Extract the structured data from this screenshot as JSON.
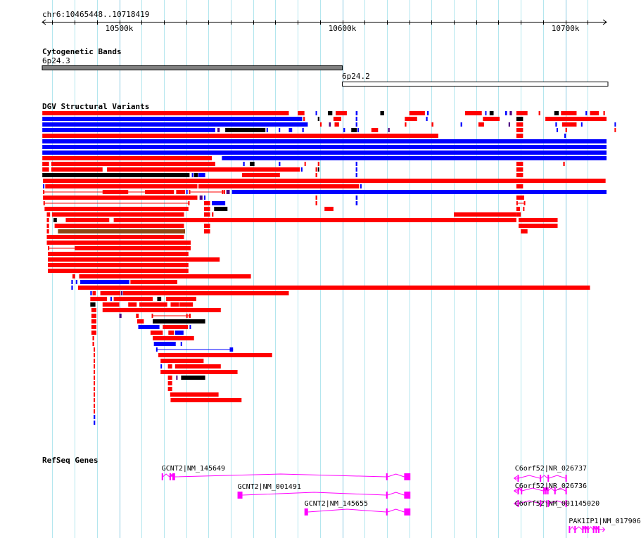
{
  "ruler": {
    "region": "chr6:10465448..10718419",
    "start": 10465448,
    "end": 10718419,
    "ticks": [
      {
        "pos": 10500000,
        "label": "10500k"
      },
      {
        "pos": 10600000,
        "label": "10600k"
      },
      {
        "pos": 10700000,
        "label": "10700k"
      }
    ]
  },
  "tracks": {
    "cytoband_title": "Cytogenetic Bands",
    "variants_title": "DGV Structural Variants",
    "genes_title": "RefSeq Genes"
  },
  "cytobands": [
    {
      "name": "6p24.3",
      "start": 10465448,
      "end": 10600000,
      "stain": "gpos"
    },
    {
      "name": "6p24.2",
      "start": 10600000,
      "end": 10718419,
      "stain": "gneg"
    }
  ],
  "colors": {
    "gain": "#ff0000",
    "loss": "#0000ff",
    "complex": "#000000",
    "inversion": "#4b0082",
    "other": "#8b4513",
    "gene": "#ff00ff",
    "grid": "#b3e6ee",
    "grid_major": "#87c8e0",
    "band_gpos": "#808080"
  },
  "variants": [
    [
      [
        "g",
        10465500,
        10576000
      ],
      [
        "g",
        10580000,
        10583000
      ],
      [
        "l",
        10588000,
        10588500
      ],
      [
        "c",
        10593500,
        10595500
      ],
      [
        "g",
        10597000,
        10602000
      ],
      [
        "l",
        10606000,
        10606800
      ],
      [
        "c",
        10617000,
        10618700
      ],
      [
        "g",
        10630000,
        10637000
      ],
      [
        "l",
        10638000,
        10638700
      ],
      [
        "g",
        10655000,
        10662500
      ],
      [
        "l",
        10664000,
        10664600
      ],
      [
        "c",
        10666000,
        10667800
      ],
      [
        "l",
        10673000,
        10673800
      ],
      [
        "i",
        10675000,
        10676000
      ],
      [
        "g",
        10678000,
        10683000
      ],
      [
        "g",
        10688000,
        10688700
      ],
      [
        "c",
        10695000,
        10697000
      ],
      [
        "g",
        10698000,
        10705000
      ],
      [
        "l",
        10709000,
        10709700
      ],
      [
        "g",
        10711000,
        10715000
      ],
      [
        "g",
        10717000,
        10717700
      ]
    ],
    [
      [
        "l",
        10465500,
        10582000
      ],
      [
        "g",
        10582500,
        10583200
      ],
      [
        "c",
        10589000,
        10589700
      ],
      [
        "g",
        10596000,
        10599500
      ],
      [
        "l",
        10606000,
        10606700
      ],
      [
        "g",
        10628000,
        10633500
      ],
      [
        "l",
        10637500,
        10638200
      ],
      [
        "g",
        10663000,
        10670500
      ],
      [
        "c",
        10678000,
        10681000
      ],
      [
        "g",
        10691000,
        10718419
      ]
    ],
    [
      [
        "l",
        10465500,
        10584500
      ],
      [
        "g",
        10590000,
        10590700
      ],
      [
        "i",
        10594000,
        10594800
      ],
      [
        "g",
        10596500,
        10598500
      ],
      [
        "l",
        10606000,
        10606700
      ],
      [
        "g",
        10628000,
        10628700
      ],
      [
        "g",
        10640000,
        10640800
      ],
      [
        "l",
        10653000,
        10653700
      ],
      [
        "g",
        10661000,
        10663500
      ],
      [
        "i",
        10674500,
        10675200
      ],
      [
        "g",
        10678000,
        10681000
      ],
      [
        "l",
        10695500,
        10696200
      ],
      [
        "g",
        10698500,
        10705000
      ],
      [
        "l",
        10707000,
        10707600
      ],
      [
        "l",
        10722000,
        10722600
      ]
    ],
    [
      [
        "l",
        10465500,
        10543000
      ],
      [
        "i",
        10544000,
        10545000
      ],
      [
        "c",
        10547500,
        10565500
      ],
      [
        "l",
        10566000,
        10566600
      ],
      [
        "l",
        10571500,
        10572100
      ],
      [
        "l",
        10576000,
        10577500
      ],
      [
        "l",
        10582000,
        10582700
      ],
      [
        "l",
        10600500,
        10601200
      ],
      [
        "c",
        10604000,
        10606500
      ],
      [
        "l",
        10606800,
        10607400
      ],
      [
        "g",
        10613000,
        10616000
      ],
      [
        "i",
        10620500,
        10621200
      ],
      [
        "g",
        10678000,
        10681000
      ],
      [
        "l",
        10696000,
        10696600
      ],
      [
        "g",
        10700000,
        10700700
      ],
      [
        "g",
        10722000,
        10722600
      ]
    ],
    [
      [
        "g",
        10465500,
        10643000
      ],
      [
        "g",
        10678000,
        10681000
      ],
      [
        "l",
        10699500,
        10700200
      ]
    ],
    [
      [
        "l",
        10465500,
        10718419
      ]
    ],
    [
      [
        "l",
        10465500,
        10718419
      ]
    ],
    [
      [
        "l",
        10465500,
        10718419
      ]
    ],
    [
      [
        "g",
        10465500,
        10541500
      ],
      [
        "l",
        10546000,
        10718419
      ]
    ],
    [
      [
        "g",
        10465500,
        10468500
      ],
      [
        "g",
        10469500,
        10543000
      ],
      [
        "l",
        10555500,
        10556200
      ],
      [
        "c",
        10558500,
        10560600
      ],
      [
        "l",
        10571500,
        10572200
      ],
      [
        "g",
        10583000,
        10583600
      ],
      [
        "g",
        10589000,
        10589700
      ],
      [
        "l",
        10606000,
        10606700
      ],
      [
        "g",
        10678000,
        10681000
      ],
      [
        "g",
        10699000,
        10699700
      ]
    ],
    [
      [
        "g",
        10465500,
        10468500
      ],
      [
        "g",
        10469500,
        10492500
      ],
      [
        "g",
        10494500,
        10581000
      ],
      [
        "l",
        10581500,
        10582100
      ],
      [
        "g",
        10588000,
        10588700
      ],
      [
        "c",
        10589000,
        10589600
      ],
      [
        "l",
        10606000,
        10606700
      ],
      [
        "g",
        10678000,
        10681000
      ]
    ],
    [
      [
        "c",
        10465500,
        10531500
      ],
      [
        "l",
        10532500,
        10533200
      ],
      [
        "c",
        10533500,
        10535300
      ],
      [
        "l",
        10535500,
        10538500
      ],
      [
        "g",
        10555000,
        10572000
      ],
      [
        "g",
        10588000,
        10588700
      ],
      [
        "l",
        10606000,
        10606700
      ],
      [
        "g",
        10678000,
        10681000
      ]
    ],
    [
      [
        "g",
        10465800,
        10718000
      ]
    ],
    [
      [
        "l",
        10465800,
        10466400
      ],
      [
        "g",
        10466800,
        10535000
      ],
      [
        "g",
        10535500,
        10607500
      ],
      [
        "l",
        10608000,
        10608600
      ],
      [
        "g",
        10678000,
        10681000
      ]
    ],
    [
      [
        "gi",
        10465800,
        10466300,
        10492500,
        10504000,
        10511500,
        10524500
      ],
      [
        "g",
        10525500,
        10529500
      ],
      [
        "l",
        10530000,
        10530600
      ],
      [
        "gi",
        10531200,
        10531700,
        10546000,
        10532500,
        10546800,
        10547400
      ],
      [
        "i",
        10548000,
        10549500
      ],
      [
        "l",
        10550500,
        10718419
      ]
    ],
    [
      [
        "g",
        10465800,
        10535000
      ],
      [
        "i",
        10536000,
        10537300
      ],
      [
        "l",
        10538000,
        10538600
      ],
      [
        "g",
        10588000,
        10588700
      ],
      [
        "l",
        10606000,
        10606800
      ],
      [
        "g",
        10678000,
        10681500
      ]
    ],
    [
      [
        "gs",
        10466000,
        10531500
      ],
      [
        "g",
        10538000,
        10540700
      ],
      [
        "l",
        10541500,
        10547500
      ],
      [
        "g",
        10588000,
        10588700
      ],
      [
        "l",
        10606000,
        10606800
      ],
      [
        "gs",
        10678000,
        10682000
      ]
    ],
    [
      [
        "g",
        10466500,
        10531000
      ],
      [
        "g",
        10538000,
        10540700
      ],
      [
        "c",
        10542500,
        10548500
      ],
      [
        "g",
        10592000,
        10596000
      ],
      [
        "g",
        10678000,
        10679600
      ],
      [
        "g",
        10681000,
        10681600
      ]
    ],
    [
      [
        "g",
        10467500,
        10469000
      ],
      [
        "g",
        10469800,
        10529000
      ],
      [
        "g",
        10538000,
        10540700
      ],
      [
        "g",
        10541500,
        10542200
      ],
      [
        "g",
        10650000,
        10678000
      ],
      [
        "g",
        10678000,
        10680000
      ]
    ],
    [
      [
        "g",
        10467500,
        10468500
      ],
      [
        "c",
        10470500,
        10472000
      ],
      [
        "g",
        10476000,
        10495500
      ],
      [
        "g",
        10497500,
        10678000
      ],
      [
        "g",
        10679000,
        10696500
      ]
    ],
    [
      [
        "g",
        10467500,
        10468500
      ],
      [
        "g",
        10471000,
        10529000
      ],
      [
        "g",
        10538000,
        10540700
      ],
      [
        "g",
        10679000,
        10696500
      ]
    ],
    [
      [
        "g",
        10467500,
        10468500
      ],
      [
        "o",
        10472500,
        10529500
      ],
      [
        "g",
        10538000,
        10540700
      ],
      [
        "g",
        10680000,
        10683000
      ]
    ],
    [
      [
        "g",
        10467500,
        10529000
      ]
    ],
    [
      [
        "g",
        10467500,
        10532000
      ]
    ],
    [
      [
        "gs",
        10468000,
        10532000,
        10480000,
        10531500
      ]
    ],
    [
      [
        "g",
        10468000,
        10531000
      ]
    ],
    [
      [
        "g",
        10468000,
        10545000
      ]
    ],
    [
      [
        "g",
        10468000,
        10531000
      ]
    ],
    [
      [
        "g",
        10468000,
        10531000
      ]
    ],
    [
      [
        "g",
        10479000,
        10480200
      ],
      [
        "g",
        10482000,
        10559000
      ]
    ],
    [
      [
        "l",
        10478500,
        10479200
      ],
      [
        "l",
        10480500,
        10481200
      ],
      [
        "l",
        10482500,
        10504500
      ],
      [
        "g",
        10505000,
        10526000
      ]
    ],
    [
      [
        "l",
        10478500,
        10479200
      ],
      [
        "g",
        10481500,
        10711000
      ]
    ],
    [
      [
        "l",
        10487000,
        10487700
      ],
      [
        "g",
        10488000,
        10489500
      ],
      [
        "g",
        10491500,
        10500500
      ],
      [
        "i",
        10500700,
        10501500
      ],
      [
        "g",
        10501700,
        10576000
      ]
    ],
    [
      [
        "g",
        10487000,
        10494500
      ],
      [
        "l",
        10496000,
        10496700
      ],
      [
        "g",
        10497500,
        10515000
      ],
      [
        "c",
        10517000,
        10518800
      ],
      [
        "g",
        10521000,
        10534500
      ]
    ],
    [
      [
        "c",
        10487000,
        10489300
      ],
      [
        "g",
        10492500,
        10500000
      ],
      [
        "g",
        10504000,
        10507800
      ],
      [
        "g",
        10509000,
        10521500
      ],
      [
        "g",
        10523000,
        10526800
      ],
      [
        "g",
        10527000,
        10533000
      ]
    ],
    [
      [
        "g",
        10487500,
        10489700
      ],
      [
        "g",
        10492500,
        10545500
      ]
    ],
    [
      [
        "g",
        10487500,
        10489700
      ],
      [
        "i",
        10500000,
        10501000
      ],
      [
        "g",
        10507500,
        10508700
      ],
      [
        "gi",
        10514500,
        10515000,
        10530000,
        10516500,
        10531200,
        10532000
      ]
    ],
    [
      [
        "g",
        10487500,
        10489700
      ],
      [
        "g",
        10508000,
        10511000
      ],
      [
        "c",
        10515000,
        10538500
      ]
    ],
    [
      [
        "g",
        10487500,
        10489700
      ],
      [
        "l",
        10508500,
        10518000
      ],
      [
        "g",
        10519500,
        10530800
      ],
      [
        "l",
        10531500,
        10532100
      ]
    ],
    [
      [
        "g",
        10487500,
        10489700
      ],
      [
        "g",
        10514000,
        10519500
      ],
      [
        "g",
        10522000,
        10524500
      ],
      [
        "l",
        10525000,
        10528800
      ]
    ],
    [
      [
        "g",
        10488000,
        10488700
      ],
      [
        "g",
        10515000,
        10533500
      ]
    ],
    [
      [
        "g",
        10488000,
        10488700
      ],
      [
        "l",
        10515500,
        10525300
      ],
      [
        "l",
        10527500,
        10528100
      ]
    ],
    [
      [
        "g",
        10488500,
        10489000
      ],
      [
        "li",
        10516500,
        10517000,
        10549500,
        10551000
      ]
    ],
    [
      [
        "g",
        10488500,
        10489000
      ],
      [
        "g",
        10517500,
        10568500
      ]
    ],
    [
      [
        "g",
        10488500,
        10489000
      ],
      [
        "g",
        10518500,
        10537800
      ]
    ],
    [
      [
        "g",
        10488500,
        10489000
      ],
      [
        "l",
        10518500,
        10519100
      ],
      [
        "g",
        10521800,
        10523700
      ],
      [
        "g",
        10525000,
        10545500
      ]
    ],
    [
      [
        "g",
        10488500,
        10489000
      ],
      [
        "g",
        10518500,
        10553000
      ]
    ],
    [
      [
        "g",
        10488500,
        10489000
      ],
      [
        "g",
        10521800,
        10523700
      ],
      [
        "i",
        10525500,
        10526100
      ],
      [
        "c",
        10527700,
        10538500
      ]
    ],
    [
      [
        "g",
        10488500,
        10489000
      ],
      [
        "g",
        10521800,
        10523700
      ]
    ],
    [
      [
        "g",
        10488500,
        10489000
      ],
      [
        "g",
        10521800,
        10523700
      ]
    ],
    [
      [
        "g",
        10488500,
        10489000
      ],
      [
        "g",
        10522800,
        10544500
      ]
    ],
    [
      [
        "g",
        10488500,
        10489000
      ],
      [
        "g",
        10523000,
        10554800
      ]
    ],
    [
      [
        "g",
        10488500,
        10489000
      ]
    ],
    [
      [
        "g",
        10488500,
        10489000
      ]
    ],
    [
      [
        "l",
        10488500,
        10489200
      ]
    ],
    [
      [
        "l",
        10488500,
        10489200
      ]
    ]
  ],
  "genes": [
    {
      "label": "GCNT2|NM_145649",
      "strand": "+",
      "start": 10519000,
      "end": 10630500,
      "exons": [
        [
          10519000,
          10519500
        ],
        [
          10522500,
          10523200
        ],
        [
          10523800,
          10525000
        ],
        [
          10619600,
          10620300
        ],
        [
          10627700,
          10630500
        ]
      ]
    },
    {
      "label": "GCNT2|NM_001491",
      "strand": "+",
      "start": 10553000,
      "end": 10630500,
      "exons": [
        [
          10553000,
          10555200
        ],
        [
          10619600,
          10620300
        ],
        [
          10627700,
          10630500
        ]
      ]
    },
    {
      "label": "GCNT2|NM_145655",
      "strand": "+",
      "start": 10583000,
      "end": 10630500,
      "exons": [
        [
          10583000,
          10584600
        ],
        [
          10619600,
          10620300
        ],
        [
          10627700,
          10630500
        ]
      ]
    },
    {
      "label": "C6orf52|NR_026737",
      "strand": "-",
      "start": 10677000,
      "end": 10700500,
      "exons": [
        [
          10678500,
          10679000
        ],
        [
          10688500,
          10689000
        ],
        [
          10692000,
          10692500
        ],
        [
          10700000,
          10700500
        ]
      ]
    },
    {
      "label": "C6orf52|NR_026736",
      "strand": "-",
      "start": 10677000,
      "end": 10700500,
      "exons": [
        [
          10678500,
          10679000
        ],
        [
          10680000,
          10680500
        ],
        [
          10690000,
          10690400
        ],
        [
          10690900,
          10691300
        ],
        [
          10691800,
          10692200
        ],
        [
          10695000,
          10695400
        ],
        [
          10700000,
          10700500
        ]
      ]
    },
    {
      "label": "C6orf52|NM_001145020",
      "strand": "-",
      "start": 10677000,
      "end": 10700500,
      "exons": [
        [
          10678500,
          10679000
        ],
        [
          10688500,
          10689000
        ],
        [
          10692000,
          10692500
        ],
        [
          10700000,
          10700500
        ]
      ]
    },
    {
      "label": "PAK1IP1|NM_017906",
      "strand": "+",
      "start": 10701500,
      "end": 10718500,
      "exons": [
        [
          10701500,
          10702100
        ],
        [
          10704000,
          10704500
        ],
        [
          10707500,
          10708000
        ],
        [
          10708700,
          10709200
        ],
        [
          10709800,
          10710300
        ],
        [
          10712300,
          10712800
        ],
        [
          10713500,
          10714000
        ],
        [
          10714600,
          10715100
        ]
      ]
    }
  ]
}
